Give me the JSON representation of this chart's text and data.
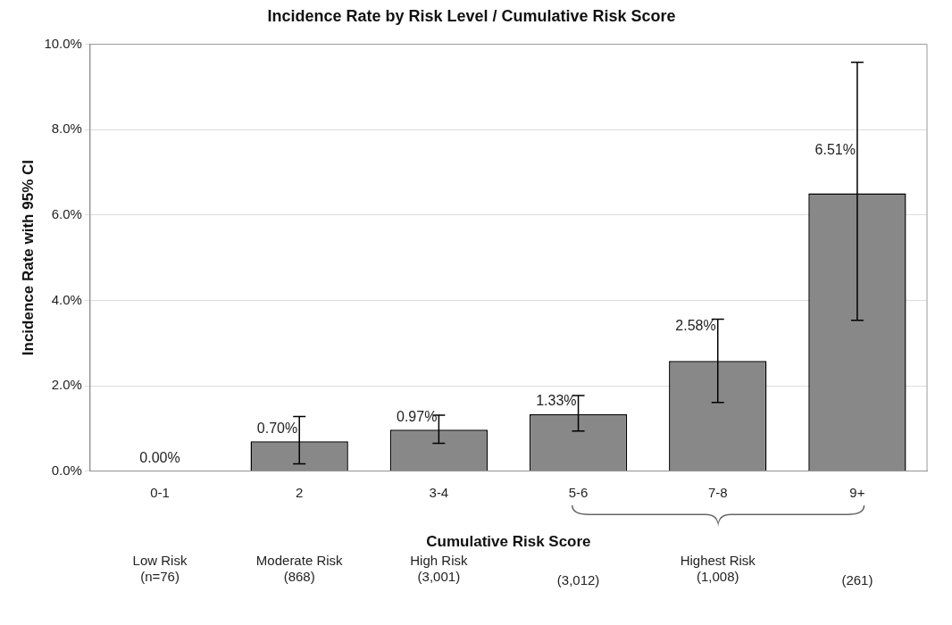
{
  "chart_data": {
    "type": "bar",
    "title": "Incidence Rate by Risk Level / Cumulative Risk Score",
    "xlabel": "Cumulative Risk Score",
    "ylabel": "Incidence Rate with 95% CI",
    "categories": [
      "0-1",
      "2",
      "3-4",
      "5-6",
      "7-8",
      "9+"
    ],
    "values": [
      0.0,
      0.7,
      0.97,
      1.33,
      2.58,
      6.51
    ],
    "value_labels": [
      "0.00%",
      "0.70%",
      "0.97%",
      "1.33%",
      "2.58%",
      "6.51%"
    ],
    "errors": [
      null,
      [
        0.17,
        1.28
      ],
      [
        0.65,
        1.31
      ],
      [
        0.94,
        1.77
      ],
      [
        1.61,
        3.56
      ],
      [
        3.53,
        9.58
      ]
    ],
    "color": "#888888",
    "ylim": [
      0,
      10
    ],
    "yticks": [
      {
        "value": 0,
        "label": "0.0%"
      },
      {
        "value": 2,
        "label": "2.0%"
      },
      {
        "value": 4,
        "label": "4.0%"
      },
      {
        "value": 6,
        "label": "6.0%"
      },
      {
        "value": 8,
        "label": "8.0%"
      },
      {
        "value": 10,
        "label": "10.0%"
      }
    ],
    "grid": "y",
    "legend": false,
    "annotations": [
      "Low Risk\n(n=76)",
      "Moderate Risk\n(868)",
      "High Risk\n(3,001)",
      "(3,012)",
      "Highest Risk\n(1,008)",
      "(261)"
    ]
  }
}
